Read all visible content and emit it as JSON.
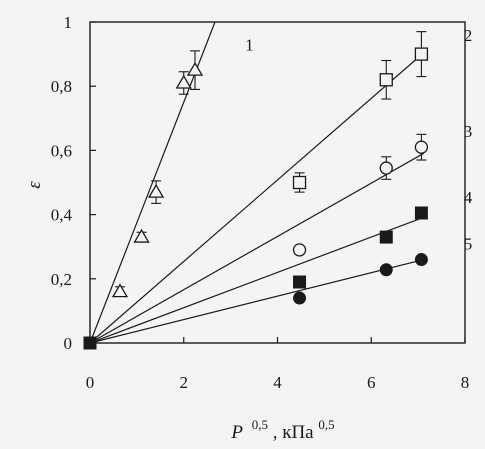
{
  "chart_data": {
    "type": "scatter",
    "xlabel": "P",
    "xlabel_superscript": "0,5",
    "xlabel_unit": ", кПа",
    "xlabel_unit_superscript": "0,5",
    "ylabel": "ε",
    "xlim": [
      0,
      8
    ],
    "ylim": [
      0,
      1
    ],
    "x_ticks": [
      {
        "value": 0,
        "label": "0"
      },
      {
        "value": 2,
        "label": "2"
      },
      {
        "value": 4,
        "label": "4"
      },
      {
        "value": 6,
        "label": "6"
      },
      {
        "value": 8,
        "label": "8"
      }
    ],
    "y_ticks": [
      {
        "value": 0,
        "label": "0"
      },
      {
        "value": 0.2,
        "label": "0,2"
      },
      {
        "value": 0.4,
        "label": "0,4"
      },
      {
        "value": 0.6,
        "label": "0,6"
      },
      {
        "value": 0.8,
        "label": "0,8"
      },
      {
        "value": 1,
        "label": "1"
      }
    ],
    "grid": false,
    "origin_point": {
      "x": 0,
      "y": 0,
      "marker": "filled-square"
    },
    "series": [
      {
        "name": "1",
        "marker": "open-triangle",
        "slope": 0.375,
        "points": [
          {
            "x": 0.64,
            "y": 0.16,
            "err": 0.015
          },
          {
            "x": 1.1,
            "y": 0.33,
            "err": 0.015
          },
          {
            "x": 1.41,
            "y": 0.47,
            "err": 0.035
          },
          {
            "x": 2.0,
            "y": 0.81,
            "err": 0.035
          },
          {
            "x": 2.24,
            "y": 0.85,
            "err": 0.06
          }
        ]
      },
      {
        "name": "2",
        "marker": "open-square",
        "slope": 0.127,
        "points": [
          {
            "x": 4.47,
            "y": 0.5,
            "err": 0.03
          },
          {
            "x": 6.32,
            "y": 0.82,
            "err": 0.06
          },
          {
            "x": 7.07,
            "y": 0.9,
            "err": 0.07
          }
        ]
      },
      {
        "name": "3",
        "marker": "open-circle",
        "slope": 0.083,
        "points": [
          {
            "x": 4.47,
            "y": 0.29,
            "err": 0.012
          },
          {
            "x": 6.32,
            "y": 0.545,
            "err": 0.035
          },
          {
            "x": 7.07,
            "y": 0.61,
            "err": 0.04
          }
        ]
      },
      {
        "name": "4",
        "marker": "filled-square",
        "slope": 0.055,
        "points": [
          {
            "x": 4.47,
            "y": 0.19,
            "err": 0
          },
          {
            "x": 6.32,
            "y": 0.33,
            "err": 0
          },
          {
            "x": 7.07,
            "y": 0.405,
            "err": 0.012
          }
        ]
      },
      {
        "name": "5",
        "marker": "filled-circle",
        "slope": 0.0365,
        "points": [
          {
            "x": 4.47,
            "y": 0.14,
            "err": 0
          },
          {
            "x": 6.32,
            "y": 0.228,
            "err": 0
          },
          {
            "x": 7.07,
            "y": 0.26,
            "err": 0
          }
        ]
      }
    ]
  }
}
